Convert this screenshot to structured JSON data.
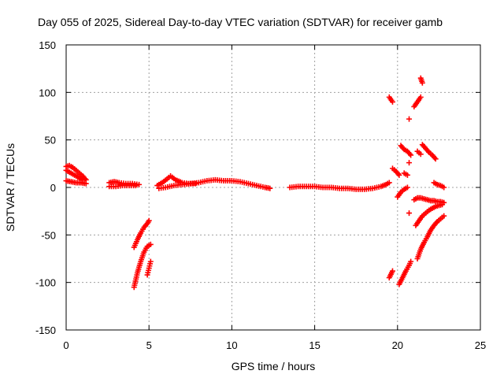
{
  "chart_data": {
    "type": "scatter",
    "title": "Day 055 of 2025, Sidereal Day-to-day VTEC variation (SDTVAR) for receiver gamb",
    "xlabel": "GPS time / hours",
    "ylabel": "SDTVAR / TECUs",
    "xlim": [
      0,
      25
    ],
    "ylim": [
      -150,
      150
    ],
    "x_ticks": [
      0,
      5,
      10,
      15,
      20,
      25
    ],
    "y_ticks": [
      -150,
      -100,
      -50,
      0,
      50,
      100,
      150
    ],
    "x_tick_labels": [
      "0",
      "5",
      "10",
      "15",
      "20",
      "25"
    ],
    "y_tick_labels": [
      "-150",
      "-100",
      "-50",
      "0",
      "50",
      "100",
      "150"
    ],
    "grid": true,
    "marker": "+",
    "marker_color": "#ff0000",
    "series": [
      {
        "values": [
          [
            0,
            22
          ],
          [
            0.2,
            23
          ],
          [
            0.4,
            21
          ],
          [
            0.6,
            18
          ],
          [
            0.8,
            15
          ],
          [
            1.0,
            12
          ],
          [
            1.2,
            8
          ]
        ]
      },
      {
        "values": [
          [
            0,
            18
          ],
          [
            0.2,
            16
          ],
          [
            0.4,
            14
          ],
          [
            0.6,
            12
          ],
          [
            0.8,
            10
          ],
          [
            1.0,
            8
          ]
        ]
      },
      {
        "values": [
          [
            0,
            7
          ],
          [
            0.3,
            6
          ],
          [
            0.6,
            5
          ],
          [
            0.9,
            5
          ],
          [
            1.2,
            4
          ]
        ]
      },
      {
        "values": [
          [
            2.6,
            5
          ],
          [
            2.9,
            6
          ],
          [
            3.2,
            5
          ],
          [
            3.6,
            4
          ],
          [
            4.0,
            4
          ],
          [
            4.4,
            3
          ]
        ]
      },
      {
        "values": [
          [
            2.6,
            1
          ],
          [
            3.0,
            1
          ],
          [
            3.4,
            2
          ],
          [
            3.8,
            2
          ],
          [
            4.2,
            2
          ]
        ]
      },
      {
        "values": [
          [
            5.5,
            2
          ],
          [
            5.8,
            5
          ],
          [
            6.1,
            9
          ],
          [
            6.3,
            12
          ],
          [
            6.6,
            8
          ],
          [
            7.0,
            5
          ],
          [
            7.4,
            4
          ],
          [
            7.8,
            4
          ]
        ]
      },
      {
        "values": [
          [
            5.6,
            -1
          ],
          [
            6.0,
            0
          ],
          [
            6.5,
            2
          ],
          [
            7.0,
            3
          ],
          [
            7.5,
            4
          ],
          [
            8.0,
            5
          ],
          [
            8.5,
            7
          ],
          [
            9.0,
            8
          ],
          [
            9.5,
            7
          ],
          [
            10.0,
            7
          ],
          [
            10.5,
            6
          ],
          [
            11.0,
            4
          ],
          [
            11.5,
            2
          ],
          [
            12.0,
            0
          ],
          [
            12.3,
            -1
          ]
        ]
      },
      {
        "values": [
          [
            13.5,
            0
          ],
          [
            14.0,
            1
          ],
          [
            14.5,
            1
          ],
          [
            15.0,
            1
          ],
          [
            15.5,
            0
          ],
          [
            16.0,
            0
          ],
          [
            16.5,
            -1
          ],
          [
            17.0,
            -1
          ],
          [
            17.5,
            -2
          ],
          [
            18.0,
            -2
          ],
          [
            18.5,
            -1
          ],
          [
            19.0,
            1
          ],
          [
            19.3,
            3
          ],
          [
            19.5,
            5
          ]
        ]
      },
      {
        "values": [
          [
            4.1,
            -63
          ],
          [
            4.3,
            -55
          ],
          [
            4.5,
            -48
          ],
          [
            4.7,
            -42
          ],
          [
            4.9,
            -38
          ],
          [
            5.0,
            -35
          ]
        ]
      },
      {
        "values": [
          [
            4.1,
            -105
          ],
          [
            4.3,
            -90
          ],
          [
            4.5,
            -78
          ],
          [
            4.7,
            -68
          ],
          [
            4.9,
            -62
          ],
          [
            5.1,
            -60
          ]
        ]
      },
      {
        "values": [
          [
            4.9,
            -92
          ],
          [
            5.0,
            -85
          ],
          [
            5.1,
            -78
          ]
        ]
      },
      {
        "values": [
          [
            19.5,
            95
          ],
          [
            19.7,
            90
          ]
        ]
      },
      {
        "values": [
          [
            19.5,
            -95
          ],
          [
            19.7,
            -88
          ]
        ]
      },
      {
        "values": [
          [
            19.7,
            20
          ],
          [
            19.9,
            17
          ],
          [
            20.1,
            13
          ]
        ]
      },
      {
        "values": [
          [
            20.1,
            -102
          ],
          [
            20.3,
            -95
          ],
          [
            20.5,
            -88
          ],
          [
            20.7,
            -82
          ],
          [
            20.8,
            -78
          ]
        ]
      },
      {
        "values": [
          [
            20.0,
            -10
          ],
          [
            20.2,
            -5
          ],
          [
            20.4,
            -2
          ],
          [
            20.6,
            0
          ]
        ]
      },
      {
        "values": [
          [
            20.2,
            44
          ],
          [
            20.4,
            40
          ],
          [
            20.6,
            38
          ],
          [
            20.8,
            34
          ]
        ]
      },
      {
        "values": [
          [
            20.4,
            15
          ],
          [
            20.6,
            13
          ]
        ]
      },
      {
        "values": [
          [
            20.7,
            72
          ]
        ]
      },
      {
        "values": [
          [
            20.7,
            26
          ]
        ]
      },
      {
        "values": [
          [
            20.7,
            -27
          ]
        ]
      },
      {
        "values": [
          [
            21.0,
            -13
          ],
          [
            21.2,
            -11
          ],
          [
            21.4,
            -11
          ],
          [
            21.6,
            -12
          ],
          [
            21.8,
            -13
          ],
          [
            22.0,
            -14
          ],
          [
            22.2,
            -14
          ],
          [
            22.4,
            -15
          ],
          [
            22.6,
            -15
          ],
          [
            22.8,
            -16
          ]
        ]
      },
      {
        "values": [
          [
            21.1,
            -40
          ],
          [
            21.3,
            -35
          ],
          [
            21.5,
            -30
          ],
          [
            21.7,
            -27
          ],
          [
            21.9,
            -24
          ],
          [
            22.1,
            -22
          ],
          [
            22.3,
            -20
          ],
          [
            22.5,
            -19
          ],
          [
            22.7,
            -18
          ]
        ]
      },
      {
        "values": [
          [
            21.2,
            -75
          ],
          [
            21.4,
            -65
          ],
          [
            21.6,
            -58
          ],
          [
            21.8,
            -52
          ],
          [
            22.0,
            -45
          ],
          [
            22.2,
            -40
          ],
          [
            22.4,
            -36
          ],
          [
            22.6,
            -33
          ],
          [
            22.8,
            -30
          ]
        ]
      },
      {
        "values": [
          [
            21.0,
            85
          ],
          [
            21.2,
            90
          ],
          [
            21.4,
            95
          ]
        ]
      },
      {
        "values": [
          [
            21.4,
            115
          ],
          [
            21.5,
            110
          ]
        ]
      },
      {
        "values": [
          [
            21.2,
            38
          ],
          [
            21.4,
            35
          ]
        ]
      },
      {
        "values": [
          [
            21.5,
            45
          ],
          [
            21.7,
            41
          ],
          [
            21.9,
            37
          ],
          [
            22.1,
            34
          ],
          [
            22.3,
            30
          ]
        ]
      },
      {
        "values": [
          [
            22.2,
            5
          ],
          [
            22.4,
            3
          ],
          [
            22.6,
            2
          ],
          [
            22.8,
            0
          ]
        ]
      }
    ]
  }
}
